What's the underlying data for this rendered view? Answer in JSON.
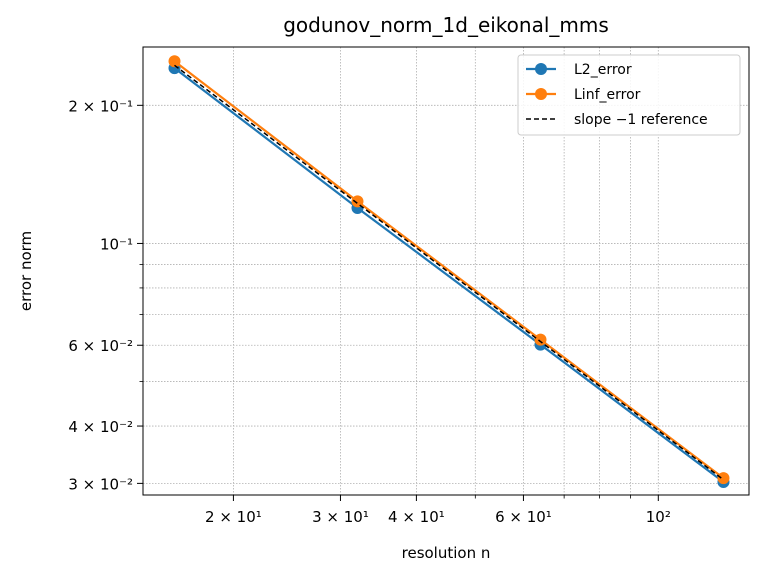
{
  "chart_data": {
    "type": "line",
    "title": "godunov_norm_1d_eikonal_mms",
    "xlabel": "resolution n",
    "ylabel": "error norm",
    "xscale": "log",
    "yscale": "log",
    "xlim": [
      14.2,
      141
    ],
    "ylim": [
      0.0283,
      0.268
    ],
    "grid": true,
    "legend_position": "top-right",
    "x": [
      16,
      32,
      64,
      128
    ],
    "series": [
      {
        "name": "L2_error",
        "values": [
          0.241,
          0.1195,
          0.0602,
          0.0302
        ],
        "color": "#1f77b4",
        "marker": "circle",
        "linestyle": "solid"
      },
      {
        "name": "Linf_error",
        "values": [
          0.2495,
          0.1235,
          0.0617,
          0.0308
        ],
        "color": "#ff7f0e",
        "marker": "circle",
        "linestyle": "solid"
      },
      {
        "name": "slope −1 reference",
        "values": [
          0.2445,
          0.12225,
          0.061125,
          0.0305625
        ],
        "color": "#000000",
        "marker": "none",
        "linestyle": "dashed"
      }
    ],
    "x_major_ticks": [
      {
        "value": 20,
        "label": "2 × 10¹"
      },
      {
        "value": 30,
        "label": "3 × 10¹"
      },
      {
        "value": 40,
        "label": "4 × 10¹"
      },
      {
        "value": 60,
        "label": "6 × 10¹"
      },
      {
        "value": 100,
        "label": "10²"
      }
    ],
    "x_minor_ticks": [
      50,
      70,
      80,
      90
    ],
    "y_major_ticks": [
      {
        "value": 0.03,
        "label": "3 × 10⁻²"
      },
      {
        "value": 0.04,
        "label": "4 × 10⁻²"
      },
      {
        "value": 0.06,
        "label": "6 × 10⁻²"
      },
      {
        "value": 0.1,
        "label": "10⁻¹"
      },
      {
        "value": 0.2,
        "label": "2 × 10⁻¹"
      }
    ],
    "y_minor_ticks": [
      0.05,
      0.07,
      0.08,
      0.09
    ]
  }
}
